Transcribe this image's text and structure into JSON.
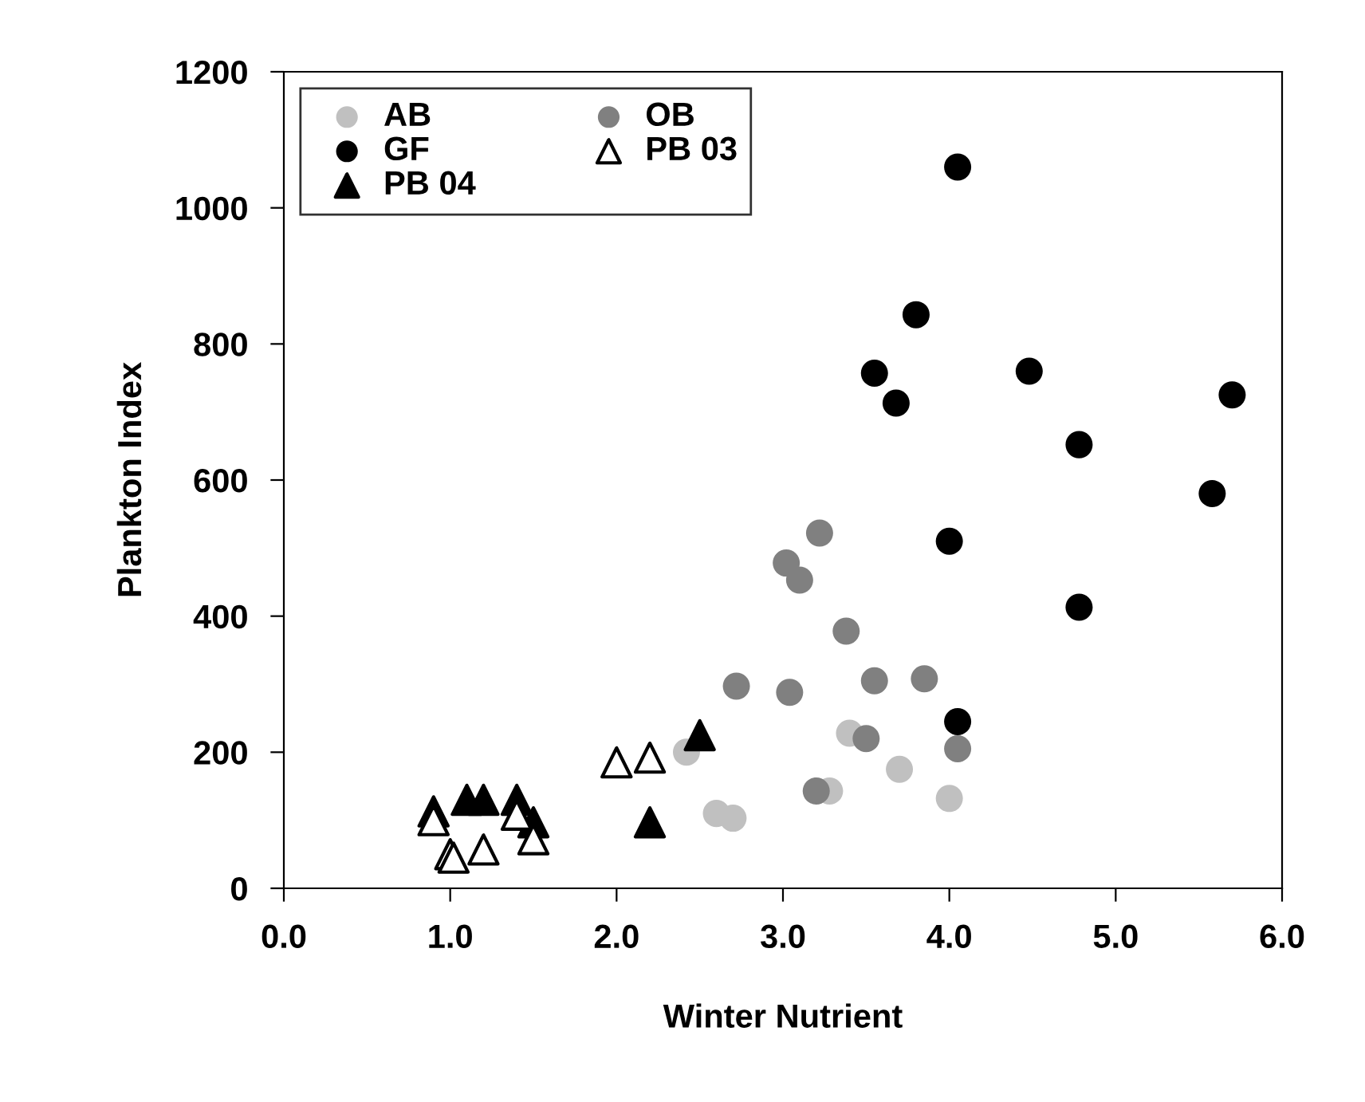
{
  "chart_data": {
    "type": "scatter",
    "xlabel": "Winter Nutrient",
    "ylabel": "Plankton Index",
    "xlim": [
      0,
      6
    ],
    "xticks": [
      {
        "value": 0,
        "label": "0.0"
      },
      {
        "value": 1,
        "label": "1.0"
      },
      {
        "value": 2,
        "label": "2.0"
      },
      {
        "value": 3,
        "label": "3.0"
      },
      {
        "value": 4,
        "label": "4.0"
      },
      {
        "value": 5,
        "label": "5.0"
      },
      {
        "value": 6,
        "label": "6.0"
      }
    ],
    "ylim": [
      0,
      1200
    ],
    "yticks": [
      0,
      200,
      400,
      600,
      800,
      1000,
      1200
    ],
    "grid": false,
    "legend": "top left",
    "series": [
      {
        "name": "AB",
        "color": "#c0c0c0",
        "marker": "circle",
        "x": [
          2.42,
          2.6,
          2.7,
          3.4,
          3.28,
          3.7,
          4.0
        ],
        "values": [
          200,
          110,
          103,
          228,
          143,
          175,
          132
        ]
      },
      {
        "name": "OB",
        "color": "#808080",
        "marker": "circle",
        "x": [
          2.72,
          3.02,
          3.1,
          3.22,
          3.04,
          3.38,
          3.2,
          3.5,
          3.55,
          3.85,
          4.05
        ],
        "values": [
          297,
          478,
          453,
          522,
          288,
          378,
          143,
          220,
          305,
          308,
          205
        ]
      },
      {
        "name": "GF",
        "color": "#000000",
        "marker": "circle",
        "x": [
          3.55,
          3.68,
          3.8,
          4.05,
          4.48,
          4.78,
          4.0,
          4.78,
          5.58,
          5.7,
          4.05
        ],
        "values": [
          757,
          713,
          843,
          1060,
          760,
          652,
          510,
          413,
          580,
          725,
          245
        ]
      },
      {
        "name": "PB 03",
        "color": "#ffffff",
        "marker": "triangle",
        "x": [
          0.9,
          1.0,
          1.02,
          1.2,
          1.4,
          1.5,
          2.0,
          2.2
        ],
        "values": [
          100,
          50,
          45,
          57,
          108,
          72,
          185,
          192
        ]
      },
      {
        "name": "PB 04",
        "color": "#000000",
        "marker": "triangle",
        "x": [
          0.9,
          1.1,
          1.2,
          1.4,
          1.5,
          2.2,
          2.5
        ],
        "values": [
          113,
          130,
          130,
          130,
          97,
          97,
          225
        ]
      }
    ]
  }
}
